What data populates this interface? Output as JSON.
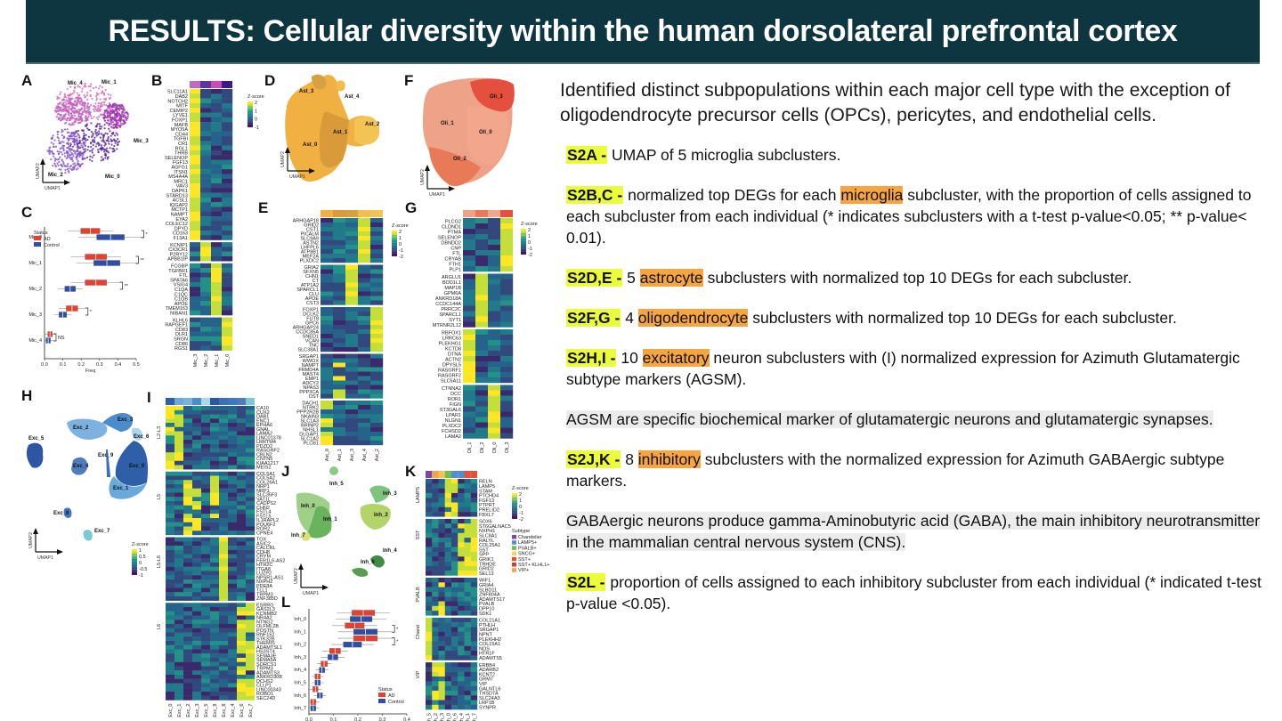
{
  "banner": {
    "title": "RESULTS: Cellular diversity within the human dorsolateral prefrontal cortex"
  },
  "text": {
    "intro": "Identified distinct subpopulations within each major cell type with the exception of oligodendrocyte precursor cells (OPCs), pericytes, and endothelial cells.",
    "items": [
      {
        "tag": "S2A -",
        "before": " UMAP of 5 microglia subclusters.",
        "highlight": "",
        "after": ""
      },
      {
        "tag": "S2B,C -",
        "before": " normalized top DEGs for each ",
        "highlight": "microglia",
        "after": " subcluster, with the proportion of cells assigned to each subcluster from each individual (* indicates subclusters with a t-test p-value<0.05; ** p-value< 0.01)."
      },
      {
        "tag": "S2D,E -",
        "before": " 5 ",
        "highlight": "astrocyte",
        "after": " subclusters with normalized top 10 DEGs for each subcluster."
      },
      {
        "tag": "S2F,G -",
        "before": " 4 ",
        "highlight": "oligodendrocyte",
        "after": " subclusters with normalized top 10 DEGs for each subcluster."
      },
      {
        "tag": "S2H,I -",
        "before": " 10 ",
        "highlight": "excitatory",
        "after": " neuron subclusters with (I) normalized expression for Azimuth Glutamatergic subtype markers (AGSM)."
      }
    ],
    "note1": "AGSM  are specific biochemical marker of glutamatergic neurons and glutamatergic synapses.",
    "items2": [
      {
        "tag": "S2J,K -",
        "before": "  8 ",
        "highlight": "inhibitory",
        "after": " subclusters with the normalized expression for Azimuth GABAergic subtype markers."
      }
    ],
    "note2": "GABAergic neurons produce gamma-Aminobutyric acid (GABA), the main inhibitory neurotransmitter in the mammalian central nervous system (CNS).",
    "items3": [
      {
        "tag": "S2L -",
        "before": " proportion of cells assigned to each inhibitory subcluster from each individual (* indicated t-test p-value <0.05).",
        "highlight": "",
        "after": ""
      }
    ],
    "colors": {
      "tag_highlight": "#eafc3b",
      "word_highlight": "#f6a540",
      "note_bg": "#ececec",
      "banner_bg": "#0e3640"
    }
  },
  "figure": {
    "panels": {
      "A": {
        "letter": "A",
        "type": "umap",
        "clusters": [
          "Mic_0",
          "Mic_1",
          "Mic_2",
          "Mic_3",
          "Mic_4"
        ],
        "axis_x": "UMAP1",
        "axis_y": "UMAP2"
      },
      "B": {
        "letter": "B",
        "type": "heatmap",
        "legend_title": "Z-score",
        "legend_ticks": [
          "2",
          "1",
          "0",
          "-1"
        ],
        "columns": [
          "Mic_3",
          "Mic_2",
          "Mic_1",
          "Mic_0"
        ],
        "genes": [
          "SLC11A1",
          "DAB2",
          "NOTCH2",
          "MITF",
          "CEMIP2",
          "LYVE1",
          "FOXP1",
          "MAFB",
          "MYO5A",
          "CD44",
          "TGFBI",
          "CR1",
          "RGL1",
          "THRB",
          "SELENOP",
          "FGF13",
          "AGFG1",
          "ITSN1",
          "MS4A4A",
          "MRC1",
          "VAV3",
          "DAPK1",
          "STARD13",
          "ACSL1",
          "IQGAP2",
          "MCTP1",
          "NAMPT",
          "EYA2",
          "COLEC12",
          "DPYD",
          "CD163",
          "F13A1",
          "KCNIP1",
          "CX3CR1",
          "P2RY12",
          "APBB1IP",
          "FCGBP",
          "TGFBR1",
          "FTL",
          "SPATA6",
          "VSIG4",
          "C1QA",
          "C1QC",
          "C1QB",
          "APOE",
          "TMEM163",
          "NIBAN1",
          "KLHL6",
          "RAPGEF1",
          "CD83",
          "OLR1",
          "SRGN",
          "CD86",
          "RGS1"
        ]
      },
      "C": {
        "letter": "C",
        "type": "boxplot",
        "legend_title": "Status",
        "legend": [
          "AD",
          "Control"
        ],
        "categories": [
          "Mic_0",
          "Mic_1",
          "Mic_2",
          "Mic_3",
          "Mic_4"
        ],
        "xlabel": "Freq",
        "xticks": [
          "0.0",
          "0.1",
          "0.2",
          "0.3",
          "0.4",
          "0.5"
        ],
        "AD_median": [
          0.25,
          0.28,
          0.28,
          0.15,
          0.03
        ],
        "Control_median": [
          0.36,
          0.34,
          0.14,
          0.1,
          0.02
        ],
        "significance": [
          "*",
          "**",
          "**",
          "*",
          "NS"
        ]
      },
      "D": {
        "letter": "D",
        "type": "umap",
        "clusters": [
          "Ast_0",
          "Ast_1",
          "Ast_2",
          "Ast_3",
          "Ast_4"
        ],
        "axis_x": "UMAP1",
        "axis_y": "UMAP2"
      },
      "E": {
        "letter": "E",
        "type": "heatmap",
        "legend_title": "Z-score",
        "legend_ticks": [
          "2",
          "1",
          "0",
          "-1",
          "-2"
        ],
        "columns": [
          "Ast_0",
          "Ast_1",
          "Ast_3",
          "Ast_4",
          "Ast_2"
        ],
        "genes": [
          "ARHGAP18",
          "GRID2",
          "CST1",
          "PICALM",
          "SLC9A9",
          "ASTN2",
          "LHFPL6",
          "ATP8B1",
          "MEF2A",
          "PLXDC2",
          "GRIA2",
          "SFXN5",
          "CHN1",
          "CT",
          "ATP1A2",
          "SPARCL1",
          "CLU",
          "APOE",
          "CST3",
          "FOXP1",
          "DCLK2",
          "FUT8",
          "GPC6",
          "ARHGAP24",
          "CCDC85A",
          "SNED1",
          "VCAN",
          "TNC",
          "SLC38A1",
          "SRGAP1",
          "WWOX",
          "NAMPT",
          "FRMD4A",
          "MAST4",
          "EMP1",
          "ADCY2",
          "NPAS3",
          "PPP3CA",
          "DST",
          "DACH1",
          "NTRK2",
          "PPP2R2B",
          "NKAIN3",
          "SLC1A3",
          "BRINP2",
          "NHSL1",
          "DLGAP1",
          "SLC1A2",
          "PLCB1"
        ]
      },
      "F": {
        "letter": "F",
        "type": "umap",
        "clusters": [
          "Oli_0",
          "Oli_1",
          "Oli_2",
          "Oli_3"
        ],
        "axis_x": "UMAP1",
        "axis_y": "UMAP2"
      },
      "G": {
        "letter": "G",
        "type": "heatmap",
        "legend_title": "Z-score",
        "legend_ticks": [
          "2",
          "1",
          "0",
          "-1",
          "-2"
        ],
        "columns": [
          "Oli_1",
          "Oli_2",
          "Oli_0",
          "Oli_3"
        ],
        "genes": [
          "PLCG2",
          "CLDND1",
          "PTMA",
          "SELENOP",
          "DBNDD2",
          "CNP",
          "FTL",
          "CRYAB",
          "FTH1",
          "PLP1",
          "ARGLU1",
          "BOD1L1",
          "MAP1B",
          "GPM6A",
          "ANKRD18A",
          "CCDC144A",
          "PRRC2C",
          "SPARCL1",
          "SYT1",
          "MTRNR2L12",
          "RBFOX1",
          "LRRC63",
          "PLEKHG1",
          "KCTD8",
          "DTNA",
          "ACTN2",
          "DPYSL5",
          "RASGRF1",
          "RASGRF2",
          "SLC5A11",
          "CTNNA2",
          "DCC",
          "ROR1",
          "FIGN",
          "ST3GAL6",
          "LPAR1",
          "NLGN1",
          "PLXDC2",
          "FCHSD2",
          "LAMA2"
        ]
      },
      "H": {
        "letter": "H",
        "type": "umap",
        "clusters": [
          "Exc_0",
          "Exc_1",
          "Exc_2",
          "Exc_3",
          "Exc_4",
          "Exc_5",
          "Exc_6",
          "Exc_7",
          "Exc_8",
          "Exc_9"
        ],
        "axis_x": "UMAP1",
        "axis_y": "UMAP2"
      },
      "I": {
        "letter": "I",
        "type": "heatmap",
        "legend_title": "Z-score",
        "legend_ticks": [
          "1",
          "0.5",
          "0",
          "-0.5",
          "-1"
        ],
        "row_groups": [
          "L2-L3",
          "L5",
          "L5-L6",
          "L6"
        ],
        "columns": [
          "Exc_0",
          "Exc_1",
          "Exc_2",
          "Exc_3",
          "Exc_5",
          "Exc_9",
          "Exc_8",
          "Exc_4",
          "Exc_6",
          "Exc_7"
        ],
        "genes": [
          "CA10",
          "CUX2",
          "DAB1",
          "ENC1",
          "EPHA6",
          "GNAL",
          "LAMA2",
          "LINC01378",
          "LRRTM4",
          "PDZD2",
          "RASGRF2",
          "CBLN2",
          "CNTN5",
          "KIAA1217",
          "MEIS2",
          "COL5A1",
          "COL5A2",
          "COL26A1",
          "NRP1",
          "NRP1",
          "SLC35F3",
          "VAT1L",
          "CADPS2",
          "CHN2",
          "FSTL4",
          "FSTL5",
          "IL1RAPL2",
          "POU6F2",
          "ROR2",
          "CPNE4",
          "TOX",
          "ASIC2",
          "CALCRL",
          "CDH8",
          "CRYM",
          "FER1L6-AS2",
          "HTR2C",
          "ITGA8",
          "LUZP2",
          "NPSR1-AS1",
          "NXPH2",
          "PDE8A",
          "TLL1",
          "TRPM3",
          "ZNF385D",
          "ESRRG",
          "GAS2L3",
          "KCNMB2",
          "NR4A2",
          "NTNG2",
          "OLFML2B",
          "POSTN",
          "RNF152",
          "STK32B",
          "THEMIS",
          "ADAMTSL1",
          "HS3ST4",
          "SEMA3E",
          "SEMA5A",
          "SORCS1",
          "TRPM3",
          "ADAMTS3",
          "ANKRD30B",
          "DCHS2",
          "CLLP1",
          "LINC00343",
          "ROBO1",
          "SEC24D"
        ]
      },
      "J": {
        "letter": "J",
        "type": "umap",
        "clusters": [
          "Inh_0",
          "Inh_1",
          "Inh_2",
          "Inh_3",
          "Inh_4",
          "Inh_5",
          "Inh_6",
          "Inh_7"
        ],
        "axis_x": "UMAP1",
        "axis_y": "UMAP2"
      },
      "K": {
        "letter": "K",
        "type": "heatmap",
        "legend_title": "Z-score",
        "legend_ticks": [
          "2",
          "1",
          "0",
          "-1",
          "-2"
        ],
        "subtype_title": "Subtype",
        "subtypes": [
          "Chandelier",
          "LAMP5+",
          "PVALB+",
          "SNCG+",
          "SST+",
          "SST+ KLHL1+",
          "VIP+"
        ],
        "row_groups": [
          "LAMP5",
          "SST",
          "PVALB",
          "Chand",
          "VIP"
        ],
        "columns": [
          "Inh_5",
          "Inh_2",
          "Inh_3",
          "Inh_0",
          "Inh_6",
          "Inh_4",
          "Inh_1",
          "Inh_7"
        ],
        "genes": [
          "RELN",
          "LAMP5",
          "STAM",
          "PTCHD4",
          "FGF13",
          "PTPRT",
          "PRELID2",
          "FBXL7",
          "SOX6",
          "ST6GALNAC5",
          "NXPH1",
          "SLC8A1",
          "RALYL",
          "COL25A1",
          "SST",
          "SPP",
          "GRIK1",
          "TRHDE",
          "GRID2",
          "SEL13",
          "WIF1",
          "GRIA4",
          "SLBD11",
          "ZNF804A",
          "ADAMTS17",
          "PVALB",
          "DPP10",
          "SDK1",
          "COL21A1",
          "PTHLH",
          "SRGAP1",
          "NPNT",
          "PLEKHH2",
          "COL15A1",
          "NOS",
          "HTR1F",
          "ADAMTS5",
          "ERBB4",
          "ADARB2",
          "KCNT2",
          "GRM7",
          "VIP",
          "GALNTL6",
          "THSD7A",
          "SLC24A3",
          "LRP1B",
          "SYNPR"
        ]
      },
      "L": {
        "letter": "L",
        "type": "boxplot",
        "legend_title": "Status",
        "legend": [
          "AD",
          "Control"
        ],
        "categories": [
          "Inh_0",
          "Inh_1",
          "Inh_2",
          "Inh_3",
          "Inh_4",
          "Inh_5",
          "Inh_6",
          "Inh_7"
        ],
        "xlabel": "Frequency",
        "xticks": [
          "0.0",
          "0.1",
          "0.2",
          "0.3",
          "0.4"
        ],
        "AD_median": [
          0.25,
          0.21,
          0.26,
          0.12,
          0.07,
          0.04,
          0.03,
          0.02
        ],
        "Control_median": [
          0.24,
          0.26,
          0.2,
          0.11,
          0.06,
          0.04,
          0.05,
          0.02
        ],
        "significance": [
          "",
          "*",
          "*",
          "",
          "",
          "",
          "",
          ""
        ]
      }
    },
    "colors": {
      "AD": "#e8402f",
      "Control": "#2f4ea6"
    }
  }
}
